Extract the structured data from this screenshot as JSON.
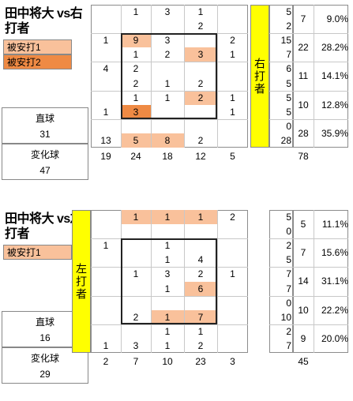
{
  "colors": {
    "hit1": "#f9c19b",
    "hit2": "#ef8a44",
    "batter_label": "#ffff00"
  },
  "chart_data": [
    {
      "type": "heatmap",
      "title": "田中将大 vs右打者",
      "batter_label": "右打者",
      "legend": [
        "被安打1",
        "被安打2"
      ],
      "fastball_label": "直球",
      "fastball_count": "31",
      "breaking_label": "変化球",
      "breaking_count": "47",
      "rows": [
        [
          "",
          "1",
          "3",
          "1",
          ""
        ],
        [
          "",
          "",
          "",
          "2",
          ""
        ],
        [
          "1",
          "9",
          "3",
          "",
          "2"
        ],
        [
          "",
          "1",
          "2",
          "3",
          "1"
        ],
        [
          "4",
          "2",
          "",
          "",
          ""
        ],
        [
          "",
          "2",
          "1",
          "2",
          ""
        ],
        [
          "",
          "1",
          "1",
          "2",
          "1"
        ],
        [
          "1",
          "3",
          "",
          "",
          "1"
        ],
        [
          "",
          "",
          "",
          "",
          ""
        ],
        [
          "13",
          "5",
          "8",
          "2",
          ""
        ]
      ],
      "highlight": [
        [
          2,
          1,
          1
        ],
        [
          3,
          3,
          1
        ],
        [
          6,
          3,
          1
        ],
        [
          7,
          1,
          2
        ],
        [
          9,
          1,
          1
        ],
        [
          9,
          2,
          1
        ]
      ],
      "right_rows": [
        "5",
        "2",
        "15",
        "7",
        "6",
        "5",
        "5",
        "5",
        "0",
        "28"
      ],
      "group_totals": [
        "7",
        "22",
        "11",
        "10",
        "28"
      ],
      "group_pcts": [
        "9.0%",
        "28.2%",
        "14.1%",
        "12.8%",
        "35.9%"
      ],
      "column_totals": [
        "19",
        "24",
        "18",
        "12",
        "5"
      ],
      "total": "78"
    },
    {
      "type": "heatmap",
      "title": "田中将大 vs左打者",
      "batter_label": "左打者",
      "legend": [
        "被安打1"
      ],
      "fastball_label": "直球",
      "fastball_count": "16",
      "breaking_label": "変化球",
      "breaking_count": "29",
      "rows": [
        [
          "",
          "1",
          "1",
          "1",
          "2"
        ],
        [
          "",
          "",
          "",
          "",
          ""
        ],
        [
          "1",
          "",
          "1",
          "",
          ""
        ],
        [
          "",
          "",
          "1",
          "4",
          ""
        ],
        [
          "",
          "1",
          "3",
          "2",
          "1"
        ],
        [
          "",
          "",
          "1",
          "6",
          ""
        ],
        [
          "",
          "",
          "",
          "",
          ""
        ],
        [
          "",
          "2",
          "1",
          "7",
          ""
        ],
        [
          "",
          "",
          "1",
          "1",
          ""
        ],
        [
          "1",
          "3",
          "1",
          "2",
          ""
        ]
      ],
      "highlight": [
        [
          0,
          1,
          1
        ],
        [
          0,
          2,
          1
        ],
        [
          0,
          3,
          1
        ],
        [
          5,
          3,
          1
        ],
        [
          7,
          2,
          1
        ],
        [
          7,
          3,
          1
        ]
      ],
      "right_rows": [
        "5",
        "0",
        "2",
        "5",
        "7",
        "7",
        "0",
        "10",
        "2",
        "7"
      ],
      "group_totals": [
        "5",
        "7",
        "14",
        "10",
        "9"
      ],
      "group_pcts": [
        "11.1%",
        "15.6%",
        "31.1%",
        "22.2%",
        "20.0%"
      ],
      "column_totals": [
        "2",
        "7",
        "10",
        "23",
        "3"
      ],
      "total": "45"
    }
  ]
}
